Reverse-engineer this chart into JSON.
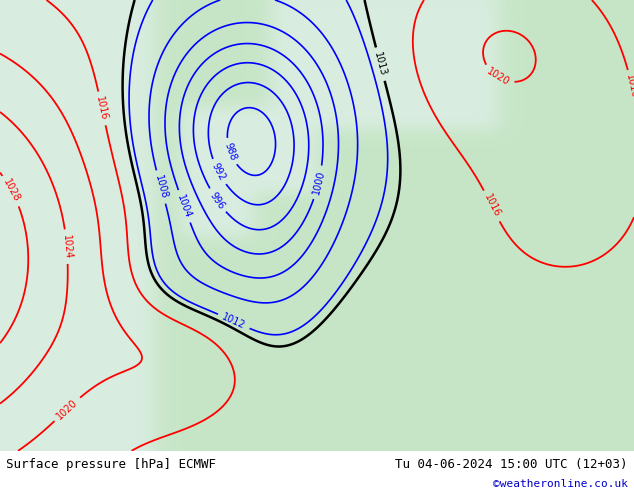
{
  "title_left": "Surface pressure [hPa] ECMWF",
  "title_right": "Tu 04-06-2024 15:00 UTC (12+03)",
  "credit": "©weatheronline.co.uk",
  "credit_color": "#0000cc",
  "land_color_r": 0.78,
  "land_color_g": 0.9,
  "land_color_b": 0.78,
  "sea_color_r": 0.85,
  "sea_color_g": 0.93,
  "sea_color_b": 0.88,
  "bottom_bar_color": "#d0d0d0",
  "bottom_text_color": "#000000",
  "figsize": [
    6.34,
    4.9
  ],
  "dpi": 100,
  "xlim": [
    -25,
    45
  ],
  "ylim": [
    30,
    72
  ]
}
